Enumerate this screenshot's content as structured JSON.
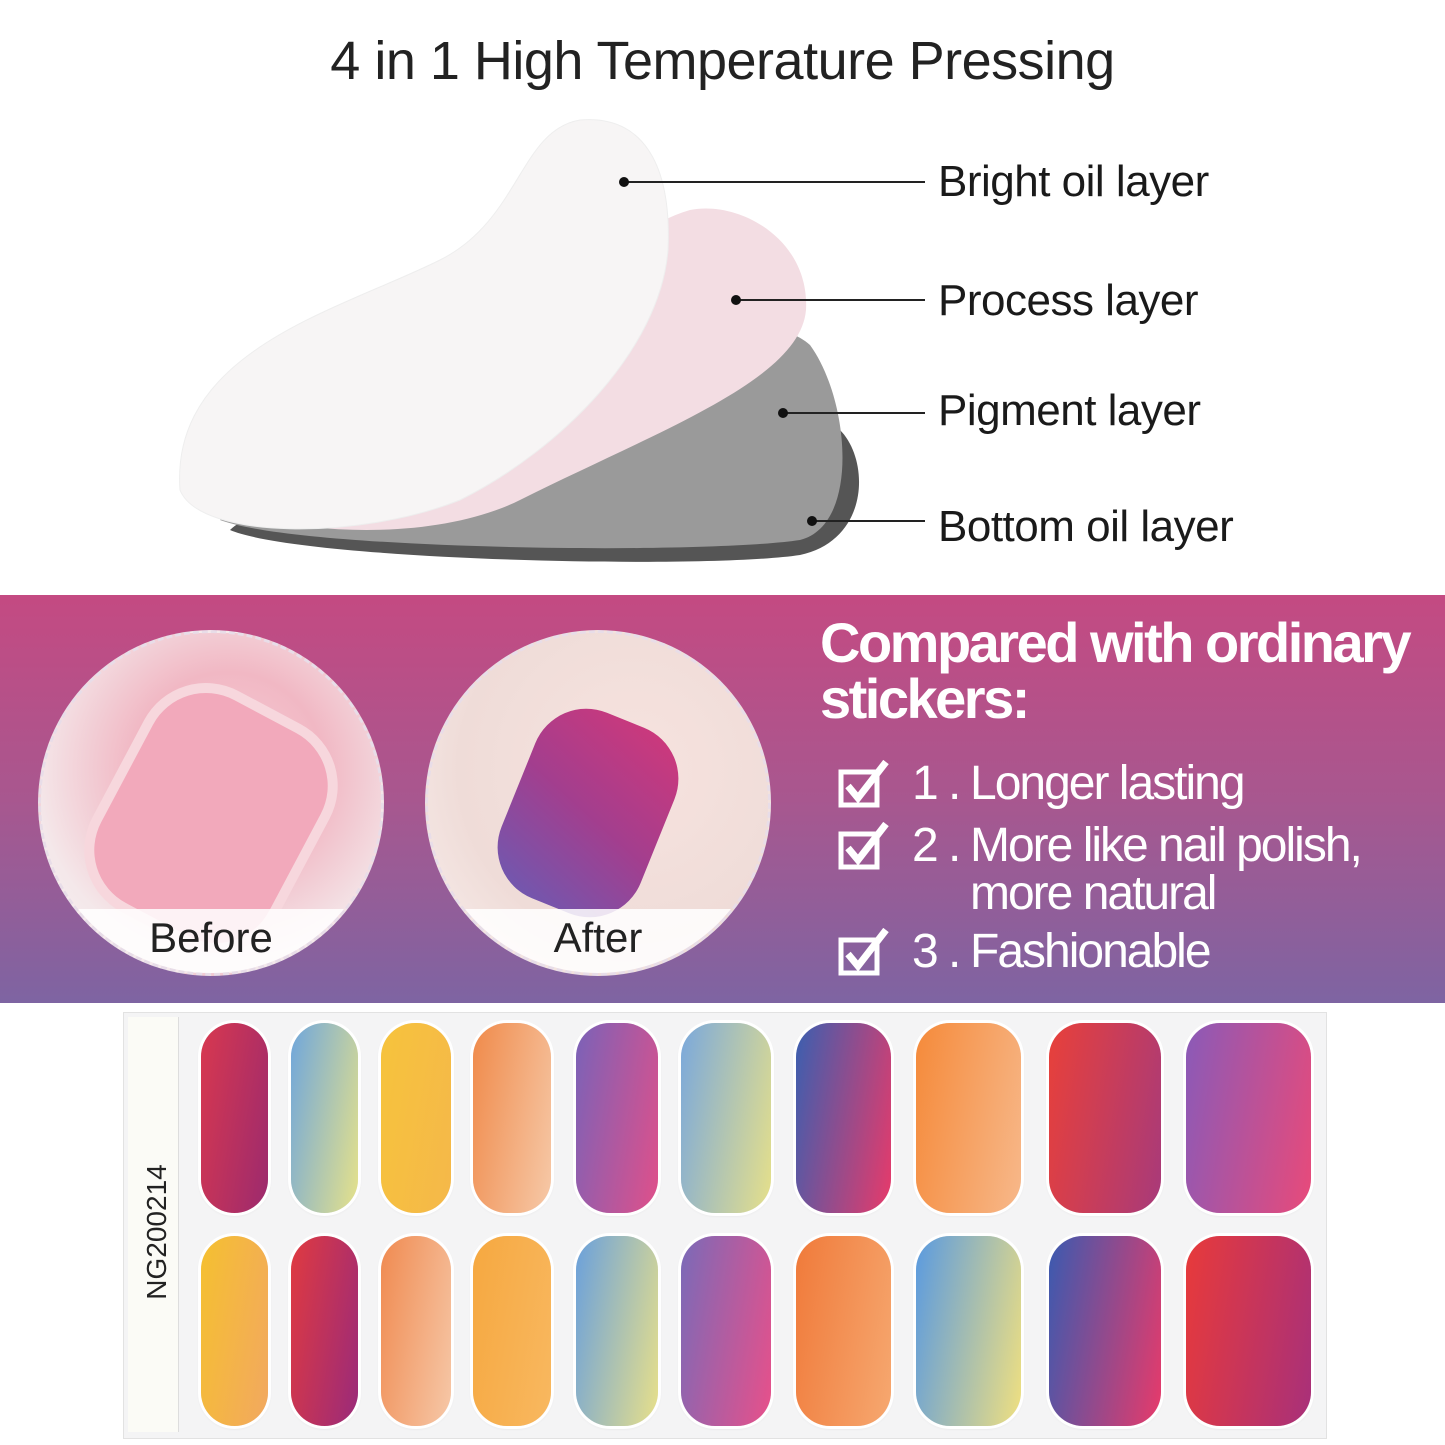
{
  "title": "4 in 1 High Temperature Pressing",
  "layers": [
    {
      "label": "Bright oil layer",
      "color": "#f7f5f5"
    },
    {
      "label": "Process layer",
      "color": "#f3dde3"
    },
    {
      "label": "Pigment layer",
      "color": "#9a9a9a"
    },
    {
      "label": "Bottom oil layer",
      "color": "#555555"
    }
  ],
  "comparison": {
    "band_colors": [
      "#c44a82",
      "#7e64a2"
    ],
    "before_label": "Before",
    "after_label": "After",
    "heading": "Compared with ordinary stickers:",
    "items": [
      {
        "num": "1 .",
        "text": "Longer lasting"
      },
      {
        "num": "2 .",
        "text": "More like nail polish, more natural"
      },
      {
        "num": "3 .",
        "text": "Fashionable"
      }
    ]
  },
  "strip": {
    "code": "NG200214",
    "row1": [
      [
        "#d8384f",
        "#9c2a6e"
      ],
      [
        "#6fa6dc",
        "#e6e28a"
      ],
      [
        "#f6c33c",
        "#f5b84a"
      ],
      [
        "#f08a4a",
        "#f6c9a8"
      ],
      [
        "#7a62b8",
        "#e0508a"
      ],
      [
        "#7aa8dc",
        "#e6e08a"
      ],
      [
        "#3a5fb0",
        "#e83a6a"
      ],
      [
        "#f58a3a",
        "#f7b88a"
      ],
      [
        "#e8403a",
        "#a83a7a"
      ],
      [
        "#8a5ab8",
        "#e84a7a"
      ]
    ],
    "row2": [
      [
        "#f5c030",
        "#f2a860"
      ],
      [
        "#e03a40",
        "#9a2a7a"
      ],
      [
        "#f08a50",
        "#f6c8a8"
      ],
      [
        "#f6a840",
        "#f8b860"
      ],
      [
        "#6aa0dc",
        "#e8e08a"
      ],
      [
        "#7a6ab8",
        "#e8508a"
      ],
      [
        "#f07a3a",
        "#f6a870"
      ],
      [
        "#5a9ae0",
        "#f0e080"
      ],
      [
        "#3a5ab0",
        "#e83a6a"
      ],
      [
        "#e83a3a",
        "#a8307a"
      ]
    ]
  }
}
